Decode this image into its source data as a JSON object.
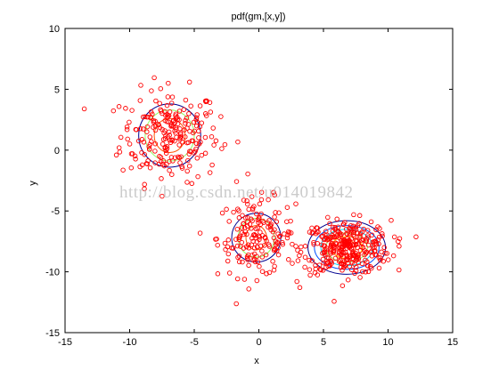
{
  "chart_data": {
    "type": "scatter",
    "title": "pdf(gm,[x,y])",
    "xlabel": "x",
    "ylabel": "y",
    "xlim": [
      -15,
      15
    ],
    "ylim": [
      -15,
      10
    ],
    "xticks": [
      -15,
      -10,
      -5,
      0,
      5,
      10,
      15
    ],
    "yticks": [
      10,
      5,
      0,
      -5,
      -10,
      -15
    ],
    "xtick_labels": [
      "-15",
      "-10",
      "-5",
      "0",
      "5",
      "10",
      "15"
    ],
    "ytick_labels": [
      "10",
      "5",
      "0",
      "-5",
      "-10",
      "-15"
    ],
    "grid": false,
    "legend": "none",
    "series": [
      {
        "marker": "open-circle",
        "color": "#ff0000",
        "clusters": [
          {
            "center": [
              -6.9,
              1.2
            ],
            "spread": [
              1.9,
              1.9
            ],
            "count": 230
          },
          {
            "center": [
              -0.2,
              -7.2
            ],
            "spread": [
              1.5,
              1.6
            ],
            "count": 170
          },
          {
            "center": [
              6.8,
              -8.0
            ],
            "spread": [
              1.7,
              1.1
            ],
            "count": 330
          }
        ]
      }
    ],
    "contours": {
      "label": "pdf(gm,[x,y])",
      "colors": [
        "#00008f",
        "#0050ff",
        "#00d4ff",
        "#90ff60",
        "#ffd000",
        "#ff5000"
      ],
      "components": [
        {
          "center": [
            -6.9,
            1.2
          ],
          "levels": [
            [
              2.4,
              2.6
            ],
            [
              1.9,
              2.1
            ],
            [
              1.2,
              1.4
            ]
          ]
        },
        {
          "center": [
            -0.2,
            -7.2
          ],
          "levels": [
            [
              1.9,
              2.0
            ],
            [
              1.4,
              1.6
            ],
            [
              0.8,
              1.0
            ]
          ]
        },
        {
          "center": [
            6.8,
            -8.0
          ],
          "levels": [
            [
              3.0,
              2.2
            ],
            [
              2.5,
              1.8
            ],
            [
              2.0,
              1.5
            ],
            [
              1.6,
              1.2
            ],
            [
              1.2,
              0.9
            ],
            [
              0.7,
              0.6
            ]
          ]
        }
      ]
    }
  },
  "watermark_text": "http://blog.csdn.net/u014019842"
}
